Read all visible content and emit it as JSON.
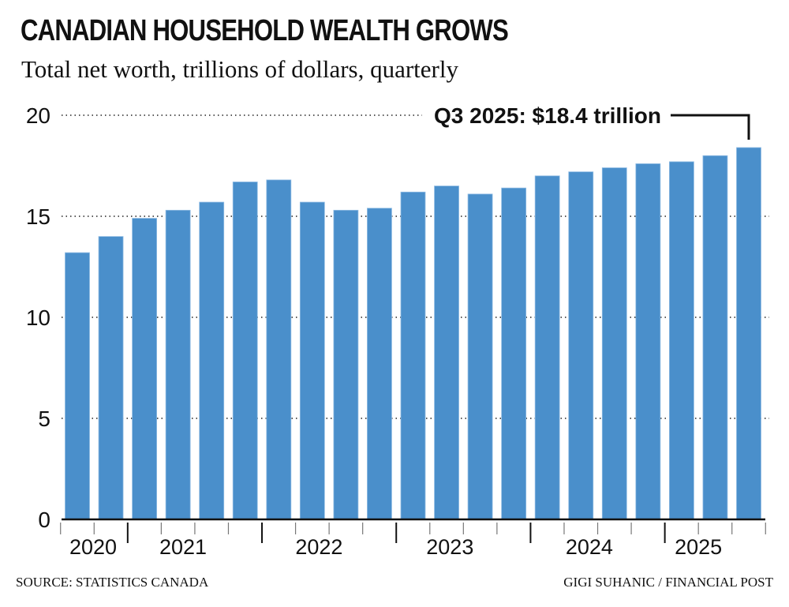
{
  "chart_data": {
    "type": "bar",
    "title": "CANADIAN HOUSEHOLD WEALTH GROWS",
    "subtitle": "Total net worth, trillions of dollars, quarterly",
    "categories": [
      "2020 Q3",
      "2020 Q4",
      "2021 Q1",
      "2021 Q2",
      "2021 Q3",
      "2021 Q4",
      "2022 Q1",
      "2022 Q2",
      "2022 Q3",
      "2022 Q4",
      "2023 Q1",
      "2023 Q2",
      "2023 Q3",
      "2023 Q4",
      "2024 Q1",
      "2024 Q2",
      "2024 Q3",
      "2024 Q4",
      "2025 Q1",
      "2025 Q2",
      "2025 Q3"
    ],
    "values": [
      13.2,
      14.0,
      14.9,
      15.3,
      15.7,
      16.7,
      16.8,
      15.7,
      15.3,
      15.4,
      16.2,
      16.5,
      16.1,
      16.4,
      17.0,
      17.2,
      17.4,
      17.6,
      17.7,
      18.0,
      18.4
    ],
    "x_tick_labels": [
      "2020",
      "2021",
      "2022",
      "2023",
      "2024",
      "2025"
    ],
    "y_ticks": [
      0,
      5,
      10,
      15,
      20
    ],
    "ylim": [
      0,
      20
    ],
    "grid": "dotted horizontal",
    "annotation": "Q3 2025: $18.4 trillion",
    "bar_color": "#4a8fcb",
    "xlabel": "",
    "ylabel": ""
  },
  "footer": {
    "source": "SOURCE: STATISTICS CANADA",
    "credit": "GIGI SUHANIC / FINANCIAL POST"
  }
}
